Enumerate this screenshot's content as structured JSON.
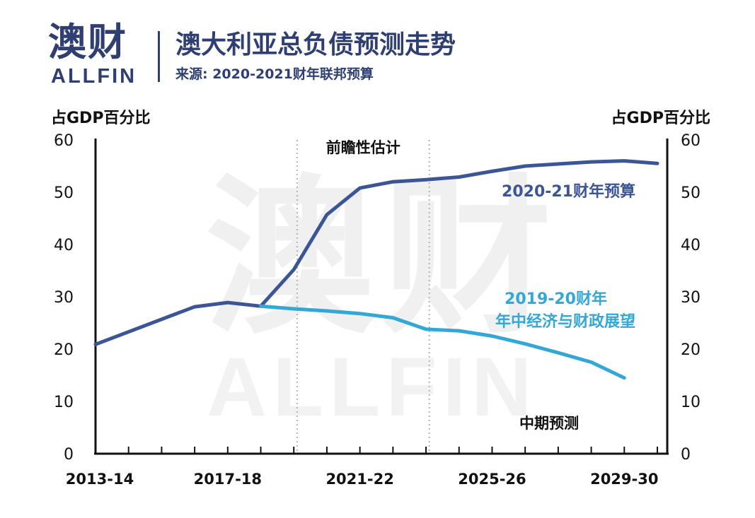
{
  "header": {
    "logo_cn": "澳财",
    "logo_en": "ALLFIN",
    "title": "澳大利亚总负债预测走势",
    "subtitle": "来源: 2020-2021财年联邦预算"
  },
  "watermark": {
    "cn": "澳财",
    "en": "ALLFIN"
  },
  "colors": {
    "brand": "#2f3f72",
    "budget": "#3b5597",
    "myefo": "#33a8d6"
  },
  "chart_data": {
    "type": "line",
    "ylabel_left": "占GDP百分比",
    "ylabel_right": "占GDP百分比",
    "ylim": [
      0,
      60
    ],
    "yticks": [
      "0",
      "10",
      "20",
      "30",
      "40",
      "50",
      "60"
    ],
    "xlim": [
      2013.5,
      2030.8
    ],
    "x_tick_labels": [
      {
        "x": 2013.5,
        "label": "2013-14"
      },
      {
        "x": 2017.5,
        "label": "2017-18"
      },
      {
        "x": 2021.5,
        "label": "2021-22"
      },
      {
        "x": 2025.5,
        "label": "2025-26"
      },
      {
        "x": 2029.5,
        "label": "2029-30"
      }
    ],
    "minor_ticks": [
      2014.5,
      2015.5,
      2016.5,
      2018.5,
      2019.5,
      2020.5,
      2022.5,
      2023.5,
      2024.5,
      2026.5,
      2027.5,
      2028.5,
      2030.5
    ],
    "forward_estimates_range": [
      2019.6,
      2023.6
    ],
    "annotations": {
      "forward_estimates": "前瞻性估计",
      "medium_term": "中期预测"
    },
    "series": [
      {
        "name": "2020-21财年预算",
        "color": "#3b5597",
        "points": [
          [
            2013.5,
            20.9
          ],
          [
            2016.5,
            28.1
          ],
          [
            2017.5,
            28.9
          ],
          [
            2018.5,
            28.2
          ],
          [
            2019.5,
            35.2
          ],
          [
            2020.5,
            45.7
          ],
          [
            2021.5,
            50.8
          ],
          [
            2022.5,
            52.0
          ],
          [
            2023.5,
            52.4
          ],
          [
            2024.5,
            52.9
          ],
          [
            2025.5,
            54.0
          ],
          [
            2026.5,
            55.0
          ],
          [
            2027.5,
            55.4
          ],
          [
            2028.5,
            55.8
          ],
          [
            2029.5,
            56.0
          ],
          [
            2030.5,
            55.5
          ]
        ]
      },
      {
        "name": "2019-20财年年中经济与财政展望",
        "label_lines": [
          "2019-20财年",
          "年中经济与财政展望"
        ],
        "color": "#33a8d6",
        "points": [
          [
            2018.5,
            28.2
          ],
          [
            2019.5,
            27.7
          ],
          [
            2020.5,
            27.3
          ],
          [
            2021.5,
            26.8
          ],
          [
            2022.5,
            26.0
          ],
          [
            2023.5,
            23.8
          ],
          [
            2024.5,
            23.5
          ],
          [
            2025.5,
            22.5
          ],
          [
            2026.5,
            21.0
          ],
          [
            2027.5,
            19.3
          ],
          [
            2028.5,
            17.5
          ],
          [
            2029.5,
            14.5
          ]
        ]
      }
    ]
  }
}
